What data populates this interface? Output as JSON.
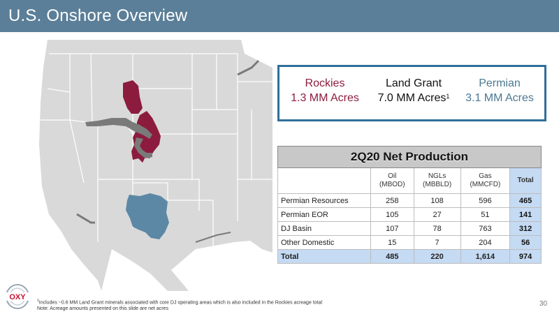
{
  "header": {
    "title": "U.S. Onshore Overview"
  },
  "acreage": {
    "rockies": {
      "name": "Rockies",
      "value": "1.3 MM Acres"
    },
    "land_grant": {
      "name": "Land Grant",
      "value": "7.0 MM Acres",
      "sup": "1"
    },
    "permian": {
      "name": "Permian",
      "value": "3.1 MM Acres"
    }
  },
  "production": {
    "caption": "2Q20 Net Production",
    "columns": [
      {
        "line1": "Oil",
        "line2": "(MBOD)"
      },
      {
        "line1": "NGLs",
        "line2": "(MBBLD)"
      },
      {
        "line1": "Gas",
        "line2": "(MMCFD)"
      },
      {
        "line1": "Total",
        "line2": ""
      }
    ],
    "rows": [
      {
        "label": "Permian Resources",
        "oil": "258",
        "ngl": "108",
        "gas": "596",
        "total": "465"
      },
      {
        "label": "Permian EOR",
        "oil": "105",
        "ngl": "27",
        "gas": "51",
        "total": "141"
      },
      {
        "label": "DJ Basin",
        "oil": "107",
        "ngl": "78",
        "gas": "763",
        "total": "312"
      },
      {
        "label": "Other Domestic",
        "oil": "15",
        "ngl": "7",
        "gas": "204",
        "total": "56"
      }
    ],
    "total_row": {
      "label": "Total",
      "oil": "485",
      "ngl": "220",
      "gas": "1,614",
      "total": "974"
    }
  },
  "footnote": {
    "sup": "1",
    "line1": "Includes ~0.6 MM Land Grant minerals associated with core DJ operating areas which is also included in the Rockies acreage total",
    "line2": "Note: Acreage amounts presented on this slide are net acres"
  },
  "page_number": "30",
  "logo": {
    "text": "OXY"
  },
  "colors": {
    "header": "#5b7f98",
    "rockies": "#8c1c3e",
    "permian": "#5c88a6",
    "land_grant": "#7a7a7a",
    "total_col": "#c5daf3"
  }
}
